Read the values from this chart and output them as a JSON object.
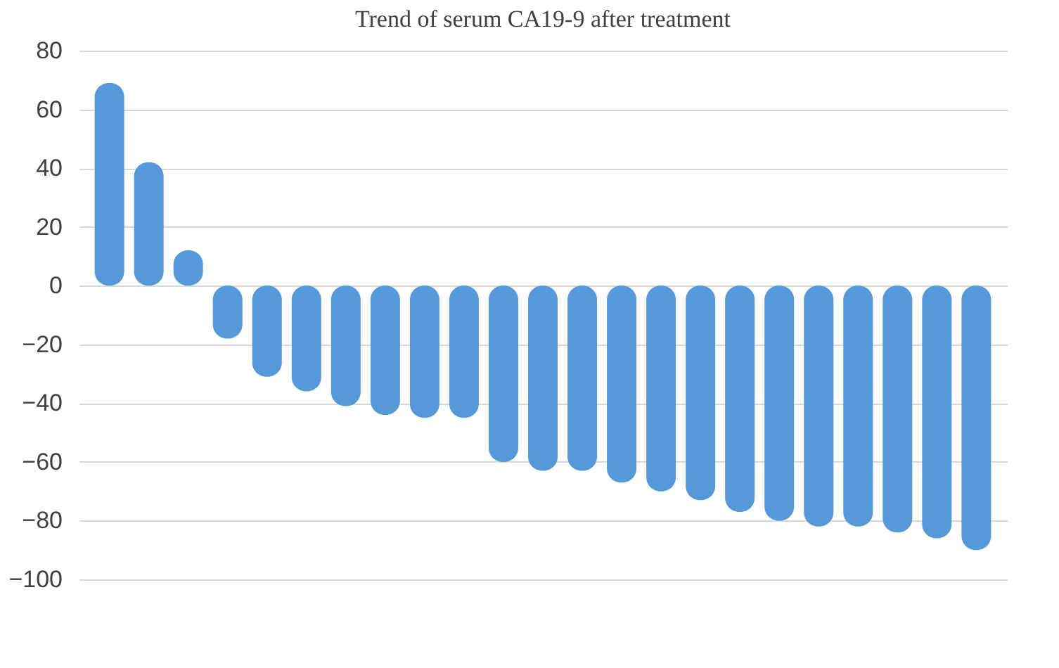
{
  "chart_data": {
    "type": "bar",
    "title": "Trend of serum CA19-9 after treatment",
    "categories": [
      null,
      null,
      null,
      null,
      null,
      null,
      null,
      null,
      null,
      null,
      null,
      null,
      null,
      null,
      null,
      null,
      null,
      null,
      null,
      null,
      null,
      null,
      null
    ],
    "values": [
      69,
      42,
      12,
      -18,
      -31,
      -36,
      -41,
      -44,
      -45,
      -45,
      -60,
      -63,
      -63,
      -67,
      -70,
      -73,
      -77,
      -80,
      -82,
      -82,
      -84,
      -86,
      -90
    ],
    "color": "#5599d8",
    "ylim": [
      -100,
      80
    ],
    "yticks": [
      -100,
      -80,
      -60,
      -40,
      -20,
      0,
      20,
      40,
      60,
      80
    ],
    "grid": "y"
  }
}
